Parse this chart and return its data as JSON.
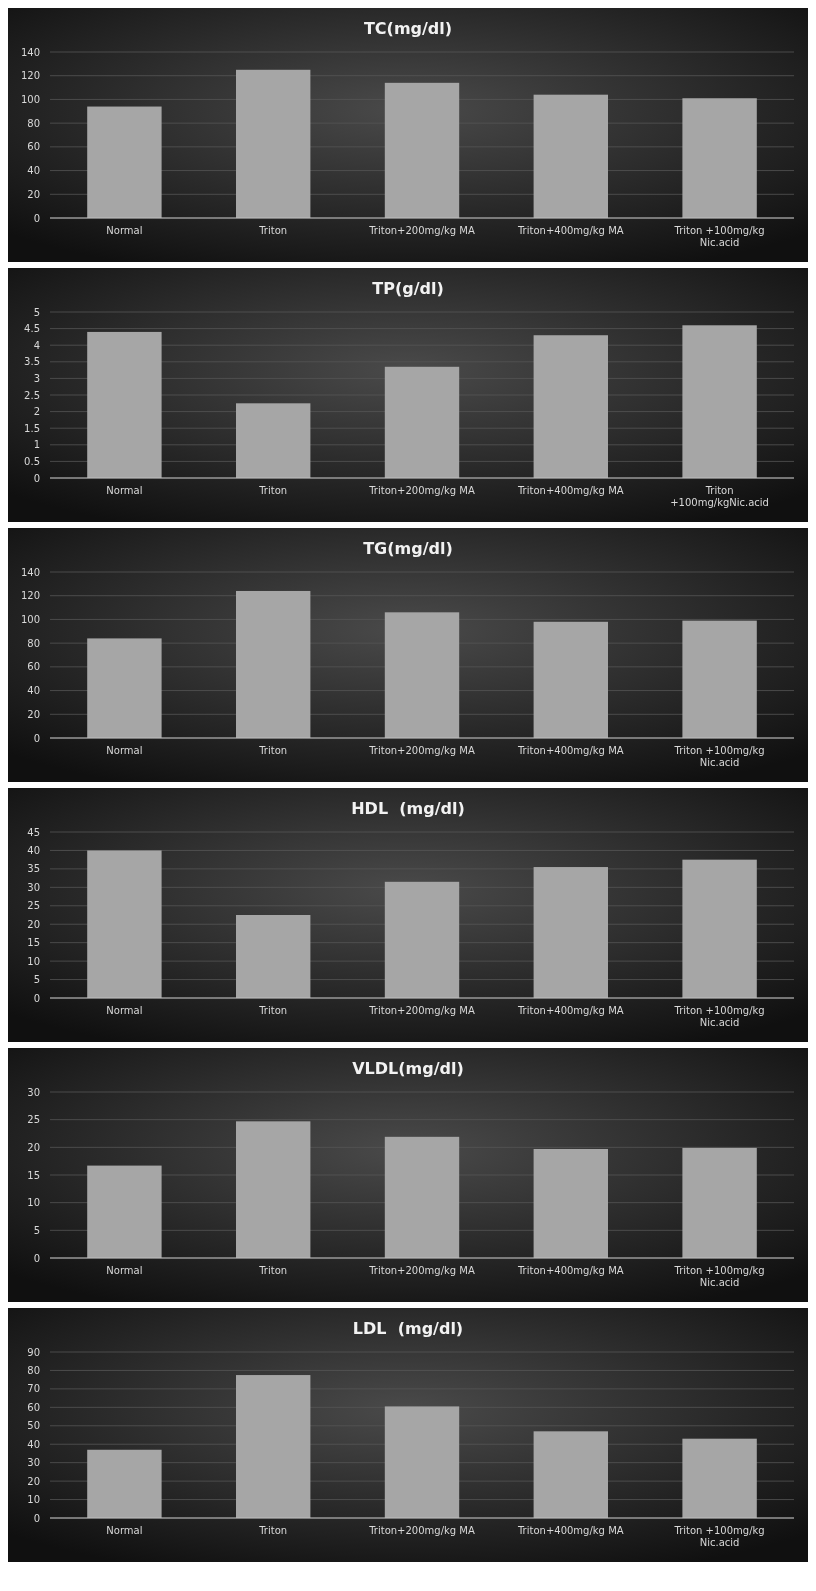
{
  "chart_data": [
    {
      "type": "bar",
      "title": "TC(mg/dl)",
      "categories": [
        "Normal",
        "Triton",
        "Triton+200mg/kg MA",
        "Triton+400mg/kg MA",
        "Triton +100mg/kg Nic.acid"
      ],
      "values": [
        94,
        125,
        114,
        104,
        101
      ],
      "color": "#a6a6a6",
      "ylim": [
        0,
        140
      ],
      "yticks": [
        0,
        20,
        40,
        60,
        80,
        100,
        120,
        140
      ],
      "grid": "y"
    },
    {
      "type": "bar",
      "title": "TP(g/dl)",
      "categories": [
        "Normal",
        "Triton",
        "Triton+200mg/kg MA",
        "Triton+400mg/kg MA",
        "Triton +100mg/kgNic.acid"
      ],
      "values": [
        4.4,
        2.25,
        3.35,
        4.3,
        4.6
      ],
      "color": "#a6a6a6",
      "ylim": [
        0,
        5
      ],
      "yticks": [
        0,
        0.5,
        1,
        1.5,
        2,
        2.5,
        3,
        3.5,
        4,
        4.5,
        5
      ],
      "grid": "y"
    },
    {
      "type": "bar",
      "title": "TG(mg/dl)",
      "categories": [
        "Normal",
        "Triton",
        "Triton+200mg/kg MA",
        "Triton+400mg/kg MA",
        "Triton +100mg/kg Nic.acid"
      ],
      "values": [
        84,
        124,
        106,
        98,
        99
      ],
      "color": "#a6a6a6",
      "ylim": [
        0,
        140
      ],
      "yticks": [
        0,
        20,
        40,
        60,
        80,
        100,
        120,
        140
      ],
      "grid": "y"
    },
    {
      "type": "bar",
      "title": "HDL  (mg/dl)",
      "categories": [
        "Normal",
        "Triton",
        "Triton+200mg/kg MA",
        "Triton+400mg/kg MA",
        "Triton +100mg/kg Nic.acid"
      ],
      "values": [
        40,
        22.5,
        31.5,
        35.5,
        37.5
      ],
      "color": "#a6a6a6",
      "ylim": [
        0,
        45
      ],
      "yticks": [
        0,
        5,
        10,
        15,
        20,
        25,
        30,
        35,
        40,
        45
      ],
      "grid": "y"
    },
    {
      "type": "bar",
      "title": "VLDL(mg/dl)",
      "categories": [
        "Normal",
        "Triton",
        "Triton+200mg/kg MA",
        "Triton+400mg/kg MA",
        "Triton +100mg/kg Nic.acid"
      ],
      "values": [
        16.7,
        24.7,
        21.9,
        19.7,
        19.9
      ],
      "color": "#a6a6a6",
      "ylim": [
        0,
        30
      ],
      "yticks": [
        0,
        5,
        10,
        15,
        20,
        25,
        30
      ],
      "grid": "y"
    },
    {
      "type": "bar",
      "title": "LDL  (mg/dl)",
      "categories": [
        "Normal",
        "Triton",
        "Triton+200mg/kg MA",
        "Triton+400mg/kg MA",
        "Triton +100mg/kg Nic.acid"
      ],
      "values": [
        37,
        77.5,
        60.5,
        47,
        43
      ],
      "color": "#a6a6a6",
      "ylim": [
        0,
        90
      ],
      "yticks": [
        0,
        10,
        20,
        30,
        40,
        50,
        60,
        70,
        80,
        90
      ],
      "grid": "y"
    }
  ]
}
